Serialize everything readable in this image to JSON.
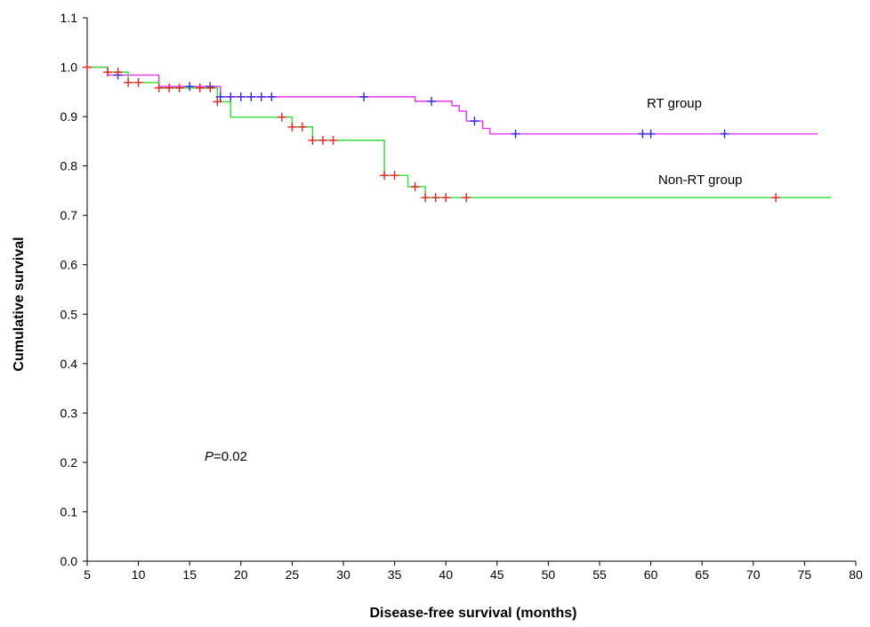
{
  "chart_data": {
    "type": "line",
    "xlabel": "Disease-free survival (months)",
    "ylabel": "Cumulative survival",
    "xlim": [
      5,
      80
    ],
    "ylim": [
      0.0,
      1.1
    ],
    "x_ticks": [
      5,
      10,
      15,
      20,
      25,
      30,
      35,
      40,
      45,
      50,
      55,
      60,
      65,
      70,
      75,
      80
    ],
    "y_ticks": [
      0.0,
      0.1,
      0.2,
      0.3,
      0.4,
      0.5,
      0.6,
      0.7,
      0.8,
      0.9,
      1.0,
      1.1
    ],
    "grid": false,
    "series": [
      {
        "name": "RT group",
        "color": "#e633e6",
        "censor_color": "#2b2bd4",
        "steps": [
          [
            5,
            1.0
          ],
          [
            7,
            0.984
          ],
          [
            12,
            0.961
          ],
          [
            18,
            0.94
          ],
          [
            37,
            0.931
          ],
          [
            40.6,
            0.922
          ],
          [
            41.3,
            0.911
          ],
          [
            42,
            0.891
          ],
          [
            43.6,
            0.876
          ],
          [
            44.3,
            0.865
          ],
          [
            76.3,
            0.865
          ]
        ],
        "censored": [
          [
            8,
            0.984
          ],
          [
            15,
            0.961
          ],
          [
            17,
            0.961
          ],
          [
            18,
            0.94
          ],
          [
            19,
            0.94
          ],
          [
            20,
            0.94
          ],
          [
            21,
            0.94
          ],
          [
            22,
            0.94
          ],
          [
            23,
            0.94
          ],
          [
            32,
            0.94
          ],
          [
            38.6,
            0.931
          ],
          [
            42.8,
            0.891
          ],
          [
            46.8,
            0.865
          ],
          [
            59.2,
            0.865
          ],
          [
            60,
            0.865
          ],
          [
            67.2,
            0.865
          ]
        ]
      },
      {
        "name": "Non-RT group",
        "color": "#33dd33",
        "censor_color": "#e62222",
        "steps": [
          [
            5,
            1.0
          ],
          [
            7,
            0.99
          ],
          [
            9,
            0.969
          ],
          [
            12,
            0.958
          ],
          [
            17.7,
            0.93
          ],
          [
            19,
            0.899
          ],
          [
            25,
            0.879
          ],
          [
            27,
            0.852
          ],
          [
            34,
            0.781
          ],
          [
            36.3,
            0.758
          ],
          [
            38,
            0.736
          ],
          [
            77.6,
            0.736
          ]
        ],
        "censored": [
          [
            5,
            1.0
          ],
          [
            7,
            0.99
          ],
          [
            8,
            0.99
          ],
          [
            9,
            0.969
          ],
          [
            10,
            0.969
          ],
          [
            12,
            0.958
          ],
          [
            13,
            0.958
          ],
          [
            14,
            0.958
          ],
          [
            16,
            0.958
          ],
          [
            17,
            0.958
          ],
          [
            17.7,
            0.93
          ],
          [
            24,
            0.899
          ],
          [
            25,
            0.879
          ],
          [
            26,
            0.879
          ],
          [
            27,
            0.852
          ],
          [
            28,
            0.852
          ],
          [
            29,
            0.852
          ],
          [
            34,
            0.781
          ],
          [
            35,
            0.781
          ],
          [
            37,
            0.758
          ],
          [
            38,
            0.736
          ],
          [
            39,
            0.736
          ],
          [
            40,
            0.736
          ],
          [
            42,
            0.736
          ],
          [
            72.2,
            0.736
          ]
        ]
      }
    ],
    "annotations": [
      {
        "series": "RT group",
        "text": "RT group"
      },
      {
        "series": "Non-RT group",
        "text": "Non-RT group"
      }
    ],
    "pvalue": {
      "symbol": "P",
      "text": "=0.02"
    }
  }
}
